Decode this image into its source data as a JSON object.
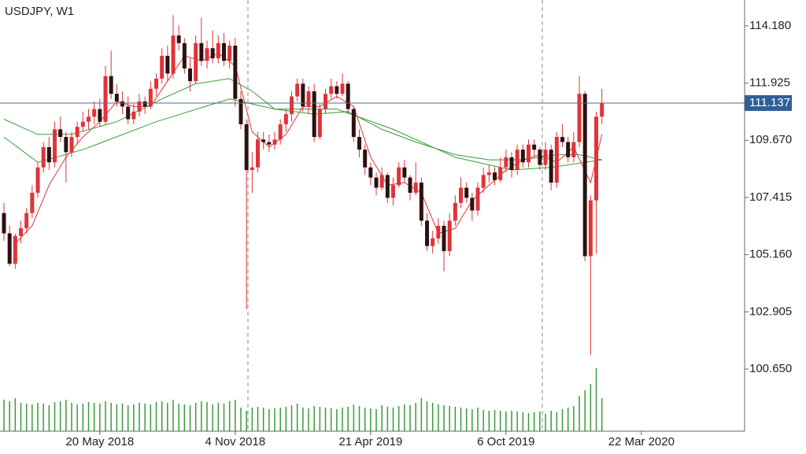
{
  "chart_data": {
    "type": "candlestick",
    "title": "USDJPY, W1",
    "up_color": "#e0333a",
    "down_color": "#2b1212",
    "volume_color": "#3a9a3a",
    "ylim": [
      98.2,
      115.2
    ],
    "yticks": [
      {
        "value": 114.18,
        "label": "114.180"
      },
      111.925,
      {
        "value": 109.67,
        "label": "109.670"
      },
      107.415,
      {
        "value": 105.16,
        "label": "105.160"
      },
      102.905,
      {
        "value": 100.65,
        "label": "100.650"
      }
    ],
    "xlim": [
      -0.7,
      131.3
    ],
    "xticks": [
      {
        "value": 17,
        "label": "20 May 2018"
      },
      {
        "value": 41,
        "label": "4 Nov 2018"
      },
      {
        "value": 65,
        "label": "21 Apr 2019"
      },
      {
        "value": 89,
        "label": "6 Oct 2019"
      },
      {
        "value": 113,
        "label": "22 Mar 2020"
      }
    ],
    "current_price": 111.137,
    "ohlc": [
      [
        106.8,
        107.2,
        105.7,
        106.0
      ],
      [
        106.0,
        106.3,
        104.7,
        104.8
      ],
      [
        104.8,
        106.0,
        104.6,
        105.9
      ],
      [
        105.9,
        106.5,
        105.6,
        106.2
      ],
      [
        106.2,
        107.0,
        106.0,
        106.8
      ],
      [
        106.8,
        107.9,
        106.6,
        107.6
      ],
      [
        107.6,
        108.8,
        107.4,
        108.6
      ],
      [
        108.6,
        109.6,
        108.4,
        109.4
      ],
      [
        109.4,
        109.8,
        108.5,
        108.8
      ],
      [
        108.8,
        110.4,
        108.6,
        110.1
      ],
      [
        110.1,
        110.6,
        109.6,
        109.8
      ],
      [
        109.8,
        110.0,
        108.0,
        109.2
      ],
      [
        109.2,
        110.0,
        109.0,
        109.8
      ],
      [
        109.8,
        110.4,
        109.5,
        110.2
      ],
      [
        110.2,
        110.8,
        110.0,
        110.4
      ],
      [
        110.4,
        110.9,
        110.1,
        110.6
      ],
      [
        110.6,
        111.2,
        110.3,
        110.9
      ],
      [
        110.9,
        111.3,
        110.2,
        110.4
      ],
      [
        110.4,
        112.6,
        110.3,
        112.2
      ],
      [
        112.2,
        113.2,
        111.3,
        111.5
      ],
      [
        111.5,
        111.9,
        111.0,
        111.2
      ],
      [
        111.2,
        111.6,
        110.7,
        111.0
      ],
      [
        111.0,
        111.4,
        110.3,
        110.5
      ],
      [
        110.5,
        111.1,
        110.3,
        110.8
      ],
      [
        110.8,
        111.5,
        110.6,
        111.2
      ],
      [
        111.2,
        111.4,
        110.7,
        111.0
      ],
      [
        111.0,
        112.0,
        110.9,
        111.7
      ],
      [
        111.7,
        112.3,
        111.4,
        112.1
      ],
      [
        112.1,
        113.3,
        111.9,
        113.0
      ],
      [
        113.0,
        113.4,
        112.0,
        112.3
      ],
      [
        112.3,
        114.6,
        112.1,
        113.8
      ],
      [
        113.8,
        114.2,
        113.2,
        113.5
      ],
      [
        113.5,
        113.7,
        112.3,
        112.5
      ],
      [
        112.5,
        112.9,
        111.6,
        112.0
      ],
      [
        112.0,
        113.8,
        111.9,
        113.5
      ],
      [
        113.5,
        114.5,
        112.6,
        112.8
      ],
      [
        112.8,
        113.6,
        112.5,
        113.3
      ],
      [
        113.3,
        114.0,
        112.7,
        112.9
      ],
      [
        112.9,
        113.8,
        112.7,
        113.5
      ],
      [
        113.5,
        113.9,
        112.6,
        112.8
      ],
      [
        112.8,
        113.6,
        112.5,
        113.4
      ],
      [
        113.4,
        113.7,
        111.0,
        111.3
      ],
      [
        111.3,
        111.6,
        110.1,
        110.3
      ],
      [
        110.3,
        110.5,
        103.0,
        108.5
      ],
      [
        108.5,
        109.2,
        107.6,
        108.6
      ],
      [
        108.6,
        110.0,
        108.4,
        109.7
      ],
      [
        109.7,
        110.0,
        109.3,
        109.6
      ],
      [
        109.6,
        109.9,
        109.2,
        109.5
      ],
      [
        109.5,
        110.0,
        109.3,
        109.7
      ],
      [
        109.7,
        110.5,
        109.5,
        110.3
      ],
      [
        110.3,
        110.9,
        110.0,
        110.7
      ],
      [
        110.7,
        111.6,
        110.4,
        111.4
      ],
      [
        111.4,
        112.1,
        111.2,
        111.9
      ],
      [
        111.9,
        112.1,
        110.8,
        111.0
      ],
      [
        111.0,
        111.8,
        110.7,
        111.6
      ],
      [
        111.6,
        111.9,
        109.6,
        109.8
      ],
      [
        109.8,
        111.1,
        109.7,
        110.9
      ],
      [
        110.9,
        111.7,
        110.7,
        111.5
      ],
      [
        111.5,
        112.1,
        111.3,
        111.8
      ],
      [
        111.8,
        112.0,
        111.3,
        111.5
      ],
      [
        111.5,
        112.3,
        111.4,
        111.9
      ],
      [
        111.9,
        112.0,
        110.7,
        110.9
      ],
      [
        110.9,
        111.0,
        109.6,
        109.8
      ],
      [
        109.8,
        110.1,
        109.0,
        109.3
      ],
      [
        109.3,
        109.5,
        108.3,
        108.6
      ],
      [
        108.6,
        108.8,
        107.9,
        108.2
      ],
      [
        108.2,
        108.4,
        107.5,
        107.8
      ],
      [
        107.8,
        108.6,
        107.7,
        108.3
      ],
      [
        108.3,
        108.4,
        107.2,
        107.4
      ],
      [
        107.4,
        108.2,
        107.1,
        107.9
      ],
      [
        107.9,
        108.8,
        107.8,
        108.6
      ],
      [
        108.6,
        108.9,
        108.0,
        108.2
      ],
      [
        108.2,
        108.3,
        107.3,
        107.6
      ],
      [
        107.6,
        108.8,
        107.5,
        108.0
      ],
      [
        108.0,
        108.2,
        106.3,
        106.5
      ],
      [
        106.5,
        106.8,
        105.3,
        105.5
      ],
      [
        105.5,
        106.1,
        105.2,
        105.8
      ],
      [
        105.8,
        106.6,
        105.6,
        106.3
      ],
      [
        106.3,
        106.5,
        104.5,
        105.3
      ],
      [
        105.3,
        106.8,
        105.1,
        106.5
      ],
      [
        106.5,
        107.5,
        106.3,
        107.2
      ],
      [
        107.2,
        108.2,
        107.0,
        107.8
      ],
      [
        107.8,
        108.0,
        107.2,
        107.4
      ],
      [
        107.4,
        107.6,
        106.5,
        106.9
      ],
      [
        106.9,
        108.0,
        106.7,
        107.8
      ],
      [
        107.8,
        108.6,
        107.6,
        108.3
      ],
      [
        108.3,
        108.7,
        108.0,
        108.4
      ],
      [
        108.4,
        108.6,
        107.9,
        108.1
      ],
      [
        108.1,
        109.0,
        108.0,
        108.6
      ],
      [
        108.6,
        109.3,
        108.4,
        109.0
      ],
      [
        109.0,
        109.2,
        108.2,
        108.5
      ],
      [
        108.5,
        109.5,
        108.3,
        109.3
      ],
      [
        109.3,
        109.5,
        108.6,
        108.8
      ],
      [
        108.8,
        109.7,
        108.6,
        109.5
      ],
      [
        109.5,
        109.7,
        109.0,
        109.3
      ],
      [
        109.3,
        109.4,
        108.5,
        108.7
      ],
      [
        108.7,
        109.6,
        108.5,
        109.3
      ],
      [
        109.3,
        109.5,
        107.7,
        108.0
      ],
      [
        108.0,
        110.0,
        107.8,
        109.8
      ],
      [
        109.8,
        110.3,
        109.4,
        109.6
      ],
      [
        109.6,
        109.8,
        108.8,
        109.0
      ],
      [
        109.0,
        110.0,
        108.8,
        109.6
      ],
      [
        109.6,
        112.2,
        109.4,
        111.5
      ],
      [
        111.5,
        111.6,
        104.9,
        105.1
      ],
      [
        105.1,
        107.5,
        101.2,
        107.3
      ],
      [
        107.3,
        110.8,
        105.2,
        110.6
      ],
      [
        110.6,
        111.7,
        110.3,
        111.137
      ]
    ],
    "volume": [
      40,
      38,
      42,
      36,
      35,
      34,
      36,
      35,
      33,
      37,
      38,
      40,
      36,
      34,
      35,
      37,
      36,
      35,
      38,
      36,
      34,
      35,
      33,
      34,
      36,
      35,
      34,
      37,
      38,
      36,
      40,
      35,
      34,
      33,
      36,
      38,
      37,
      34,
      36,
      35,
      38,
      40,
      30,
      26,
      30,
      31,
      30,
      28,
      29,
      30,
      31,
      33,
      35,
      30,
      29,
      32,
      31,
      30,
      29,
      28,
      30,
      31,
      34,
      32,
      30,
      29,
      28,
      33,
      31,
      30,
      32,
      34,
      33,
      36,
      42,
      38,
      36,
      34,
      33,
      32,
      31,
      30,
      29,
      28,
      30,
      27,
      26,
      27,
      26,
      25,
      26,
      25,
      24,
      23,
      24,
      25,
      22,
      26,
      24,
      28,
      30,
      32,
      45,
      52,
      60,
      80,
      42
    ],
    "series": [
      {
        "color": "#e0333a",
        "x": [
          2,
          5,
          8,
          11,
          14,
          17,
          20,
          23,
          26,
          29,
          32,
          35,
          38,
          41,
          44,
          47,
          50,
          53,
          56,
          59,
          62,
          65,
          68,
          71,
          74,
          77,
          80,
          83,
          86,
          89,
          92,
          95,
          98,
          101,
          104,
          106
        ],
        "values": [
          105.6,
          106.3,
          107.9,
          109.0,
          109.8,
          110.4,
          111.2,
          111.0,
          111.0,
          112.0,
          113.0,
          112.8,
          113.1,
          112.6,
          110.0,
          109.4,
          109.9,
          111.0,
          111.0,
          111.4,
          111.0,
          109.0,
          107.9,
          108.0,
          107.6,
          106.0,
          106.2,
          107.3,
          107.9,
          108.5,
          108.9,
          109.1,
          108.8,
          109.4,
          108.0,
          109.9
        ]
      },
      {
        "color": "#3a9a3a",
        "x": [
          0,
          6,
          12,
          20,
          28,
          34,
          40,
          44,
          48,
          55,
          61,
          67,
          73,
          80,
          86,
          92,
          98,
          102,
          106
        ],
        "values": [
          110.5,
          109.9,
          109.9,
          110.4,
          111.3,
          111.9,
          112.1,
          111.6,
          110.9,
          110.7,
          110.8,
          110.1,
          109.6,
          109.1,
          108.9,
          108.9,
          109.1,
          109.1,
          108.9
        ]
      },
      {
        "color": "#3a9a3a",
        "x": [
          0,
          6,
          14,
          27,
          40,
          48,
          59,
          69,
          80,
          90,
          97,
          106
        ],
        "values": [
          109.8,
          108.8,
          109.3,
          110.4,
          111.3,
          110.9,
          110.9,
          110.1,
          109.0,
          108.5,
          108.6,
          108.9
        ]
      }
    ]
  }
}
